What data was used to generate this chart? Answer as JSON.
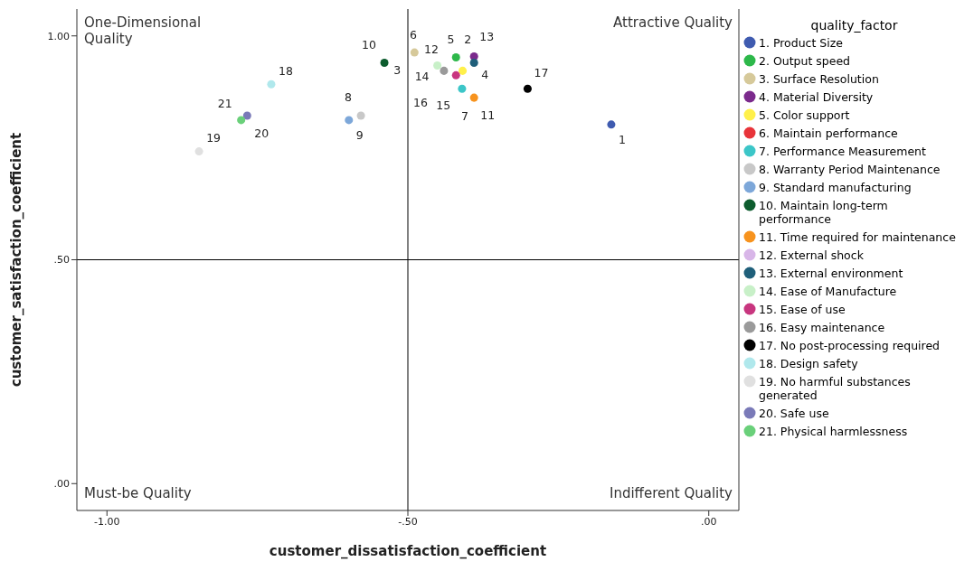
{
  "chart_data": {
    "type": "scatter",
    "xlabel": "customer_dissatisfaction_coefficient",
    "ylabel": "customer_satisfaction_coefficient",
    "legend_title": "quality_factor",
    "legend": "right",
    "marker": "circle",
    "grid": false,
    "xlim": [
      -1.05,
      0.05
    ],
    "ylim": [
      -0.06,
      1.06
    ],
    "xticks": [
      {
        "value": -1,
        "label": "-1.00"
      },
      {
        "value": -0.5,
        "label": "-.50"
      },
      {
        "value": 0,
        "label": ".00"
      }
    ],
    "yticks": [
      {
        "value": 0,
        "label": ".00"
      },
      {
        "value": 0.5,
        "label": ".50"
      },
      {
        "value": 1,
        "label": "1.00"
      }
    ],
    "ref_lines": [
      {
        "axis": "x",
        "value": -0.5,
        "color": "#000000"
      },
      {
        "axis": "y",
        "value": 0.5,
        "color": "#000000"
      }
    ],
    "series": [
      {
        "name": "1. Product Size",
        "color": "#3f5bb0",
        "x": [
          -0.162
        ],
        "values": [
          0.802
        ]
      },
      {
        "name": "2. Output speed",
        "color": "#2db84a",
        "x": [
          -0.42
        ],
        "values": [
          0.952
        ]
      },
      {
        "name": "3. Surface Resolution",
        "color": "#d6c99a",
        "x": [
          -0.489
        ],
        "values": [
          0.963
        ]
      },
      {
        "name": "4. Material Diversity",
        "color": "#7b2a8c",
        "x": [
          -0.39
        ],
        "values": [
          0.954
        ]
      },
      {
        "name": "5. Color support",
        "color": "#fff04a",
        "x": [
          -0.409
        ],
        "values": [
          0.922
        ]
      },
      {
        "name": "6. Maintain performance",
        "color": "#e8343a",
        "x": [
          null
        ],
        "values": [
          null
        ]
      },
      {
        "name": "7. Performance Measurement",
        "color": "#3cc6c8",
        "x": [
          -0.41
        ],
        "values": [
          0.882
        ]
      },
      {
        "name": "8. Warranty Period Maintenance",
        "color": "#c8c8c8",
        "x": [
          -0.578
        ],
        "values": [
          0.822
        ]
      },
      {
        "name": "9. Standard manufacturing",
        "color": "#7da7d9",
        "x": [
          -0.598
        ],
        "values": [
          0.812
        ]
      },
      {
        "name": "10. Maintain long-term performance",
        "color": "#0d5c2e",
        "x": [
          -0.539
        ],
        "values": [
          0.94
        ]
      },
      {
        "name": "11. Time required for maintenance",
        "color": "#f7931e",
        "x": [
          -0.39
        ],
        "values": [
          0.862
        ]
      },
      {
        "name": "12. External shock",
        "color": "#d8b6e8",
        "x": [
          null
        ],
        "values": [
          null
        ]
      },
      {
        "name": "13. External environment",
        "color": "#1f5f7a",
        "x": [
          -0.39
        ],
        "values": [
          0.94
        ]
      },
      {
        "name": "14. Ease of Manufacture",
        "color": "#c8f0c8",
        "x": [
          -0.451
        ],
        "values": [
          0.934
        ]
      },
      {
        "name": "15. Ease of use",
        "color": "#c8367f",
        "x": [
          -0.42
        ],
        "values": [
          0.912
        ]
      },
      {
        "name": "16. Easy maintenance",
        "color": "#9a9a9a",
        "x": [
          -0.44
        ],
        "values": [
          0.922
        ]
      },
      {
        "name": "17. No post-processing required",
        "color": "#000000",
        "x": [
          -0.301
        ],
        "values": [
          0.882
        ]
      },
      {
        "name": "18. Design safety",
        "color": "#b0e8ec",
        "x": [
          -0.727
        ],
        "values": [
          0.892
        ]
      },
      {
        "name": "19. No harmful substances generated",
        "color": "#e0e0e0",
        "x": [
          -0.847
        ],
        "values": [
          0.742
        ]
      },
      {
        "name": "20. Safe use",
        "color": "#7a7ab8",
        "x": [
          -0.767
        ],
        "values": [
          0.822
        ]
      },
      {
        "name": "21. Physical harmlessness",
        "color": "#6ad07a",
        "x": [
          -0.777
        ],
        "values": [
          0.812
        ]
      }
    ],
    "annotations": [
      "One-Dimensional Quality",
      "Attractive Quality",
      "Must-be Quality",
      "Indifferent Quality",
      "6",
      "12",
      {
        "text": "1",
        "x": -0.162,
        "y": 0.802
      },
      {
        "text": "2",
        "x": -0.42,
        "y": 0.952
      },
      {
        "text": "3",
        "x": -0.489,
        "y": 0.963
      },
      {
        "text": "4",
        "x": -0.39,
        "y": 0.954
      },
      {
        "text": "5",
        "x": -0.409,
        "y": 0.922
      },
      {
        "text": "7",
        "x": -0.41,
        "y": 0.882
      },
      {
        "text": "8",
        "x": -0.578,
        "y": 0.822
      },
      {
        "text": "9",
        "x": -0.598,
        "y": 0.812
      },
      {
        "text": "10",
        "x": -0.539,
        "y": 0.94
      },
      {
        "text": "11",
        "x": -0.39,
        "y": 0.862
      },
      {
        "text": "13",
        "x": -0.39,
        "y": 0.94
      },
      {
        "text": "14",
        "x": -0.451,
        "y": 0.934
      },
      {
        "text": "15",
        "x": -0.42,
        "y": 0.912
      },
      {
        "text": "16",
        "x": -0.44,
        "y": 0.922
      },
      {
        "text": "17",
        "x": -0.301,
        "y": 0.882
      },
      {
        "text": "18",
        "x": -0.727,
        "y": 0.892
      },
      {
        "text": "19",
        "x": -0.847,
        "y": 0.742
      },
      {
        "text": "20",
        "x": -0.767,
        "y": 0.822
      },
      {
        "text": "21",
        "x": -0.777,
        "y": 0.812
      }
    ]
  }
}
